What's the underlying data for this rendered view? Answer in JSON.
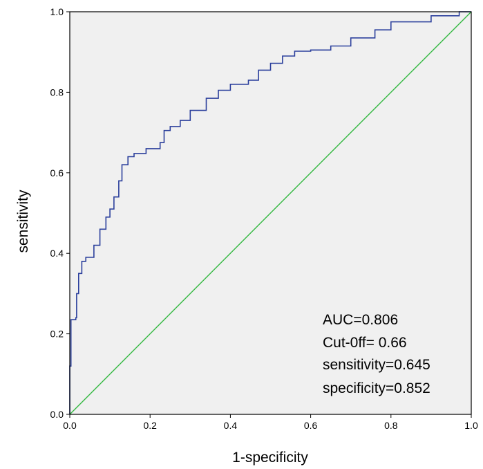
{
  "chart_data": {
    "type": "line",
    "title": "",
    "xlabel": "1-specificity",
    "ylabel": "sensitivity",
    "xlim": [
      0,
      1
    ],
    "ylim": [
      0,
      1
    ],
    "x_ticks": [
      "0.0",
      "0.2",
      "0.4",
      "0.6",
      "0.8",
      "1.0"
    ],
    "y_ticks": [
      "0.0",
      "0.2",
      "0.4",
      "0.6",
      "0.8",
      "1.0"
    ],
    "grid": false,
    "background_color": "#f0f0f0",
    "series": [
      {
        "color": "#2b3f9c",
        "step": true,
        "points": [
          [
            0.0,
            0.0
          ],
          [
            0.0,
            0.12
          ],
          [
            0.003,
            0.12
          ],
          [
            0.003,
            0.235
          ],
          [
            0.015,
            0.24
          ],
          [
            0.017,
            0.3
          ],
          [
            0.022,
            0.35
          ],
          [
            0.03,
            0.38
          ],
          [
            0.04,
            0.39
          ],
          [
            0.06,
            0.42
          ],
          [
            0.075,
            0.46
          ],
          [
            0.09,
            0.49
          ],
          [
            0.1,
            0.51
          ],
          [
            0.11,
            0.54
          ],
          [
            0.122,
            0.58
          ],
          [
            0.13,
            0.62
          ],
          [
            0.145,
            0.64
          ],
          [
            0.16,
            0.648
          ],
          [
            0.19,
            0.66
          ],
          [
            0.225,
            0.675
          ],
          [
            0.235,
            0.705
          ],
          [
            0.25,
            0.715
          ],
          [
            0.275,
            0.73
          ],
          [
            0.3,
            0.755
          ],
          [
            0.34,
            0.785
          ],
          [
            0.37,
            0.805
          ],
          [
            0.4,
            0.82
          ],
          [
            0.445,
            0.83
          ],
          [
            0.47,
            0.855
          ],
          [
            0.5,
            0.872
          ],
          [
            0.53,
            0.89
          ],
          [
            0.56,
            0.902
          ],
          [
            0.6,
            0.905
          ],
          [
            0.65,
            0.915
          ],
          [
            0.7,
            0.935
          ],
          [
            0.76,
            0.955
          ],
          [
            0.8,
            0.975
          ],
          [
            0.9,
            0.99
          ],
          [
            0.97,
            1.0
          ],
          [
            1.0,
            1.0
          ]
        ]
      },
      {
        "color": "#33b840",
        "points": [
          [
            0,
            0
          ],
          [
            1,
            1
          ]
        ]
      }
    ],
    "annotations": [
      "AUC=0.806",
      "Cut-0ff= 0.66",
      "sensitivity=0.645",
      "specificity=0.852"
    ]
  }
}
